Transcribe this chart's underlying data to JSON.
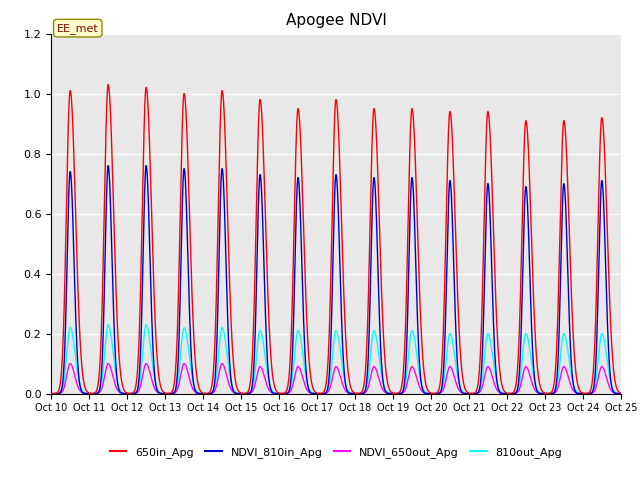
{
  "title": "Apogee NDVI",
  "annotation": "EE_met",
  "ylim": [
    0.0,
    1.2
  ],
  "yticks": [
    0.0,
    0.2,
    0.4,
    0.6,
    0.8,
    1.0,
    1.2
  ],
  "xtick_labels": [
    "Oct 10",
    "Oct 11",
    "Oct 12",
    "Oct 13",
    "Oct 14",
    "Oct 15",
    "Oct 16",
    "Oct 17",
    "Oct 18",
    "Oct 19",
    "Oct 20",
    "Oct 21",
    "Oct 22",
    "Oct 23",
    "Oct 24",
    "Oct 25"
  ],
  "series": {
    "650in_Apg": {
      "color": "#ff0000",
      "lw": 1.0
    },
    "NDVI_810in_Apg": {
      "color": "#0000cc",
      "lw": 1.0
    },
    "NDVI_650out_Apg": {
      "color": "#ff00ff",
      "lw": 1.0
    },
    "810out_Apg": {
      "color": "#00ffff",
      "lw": 1.0
    }
  },
  "background_color": "#e8e8e8",
  "grid_color": "#ffffff",
  "peak_positions": [
    1,
    2,
    3,
    4,
    5,
    6,
    7,
    8,
    9,
    10,
    11,
    12,
    13,
    14,
    15
  ],
  "peak_650in": [
    1.01,
    1.03,
    1.02,
    1.0,
    1.01,
    0.98,
    0.95,
    0.98,
    0.95,
    0.95,
    0.94,
    0.94,
    0.91,
    0.91,
    0.92
  ],
  "peak_810in": [
    0.74,
    0.76,
    0.76,
    0.75,
    0.75,
    0.73,
    0.72,
    0.73,
    0.72,
    0.72,
    0.71,
    0.7,
    0.69,
    0.7,
    0.71
  ],
  "peak_650out": [
    0.1,
    0.1,
    0.1,
    0.1,
    0.1,
    0.09,
    0.09,
    0.09,
    0.09,
    0.09,
    0.09,
    0.09,
    0.09,
    0.09,
    0.09
  ],
  "peak_810out": [
    0.22,
    0.23,
    0.23,
    0.22,
    0.22,
    0.21,
    0.21,
    0.21,
    0.21,
    0.21,
    0.2,
    0.2,
    0.2,
    0.2,
    0.2
  ],
  "sigma_wide": 0.13,
  "sigma_narrow": 0.09,
  "legend_labels": [
    "650in_Apg",
    "NDVI_810in_Apg",
    "NDVI_650out_Apg",
    "810out_Apg"
  ]
}
